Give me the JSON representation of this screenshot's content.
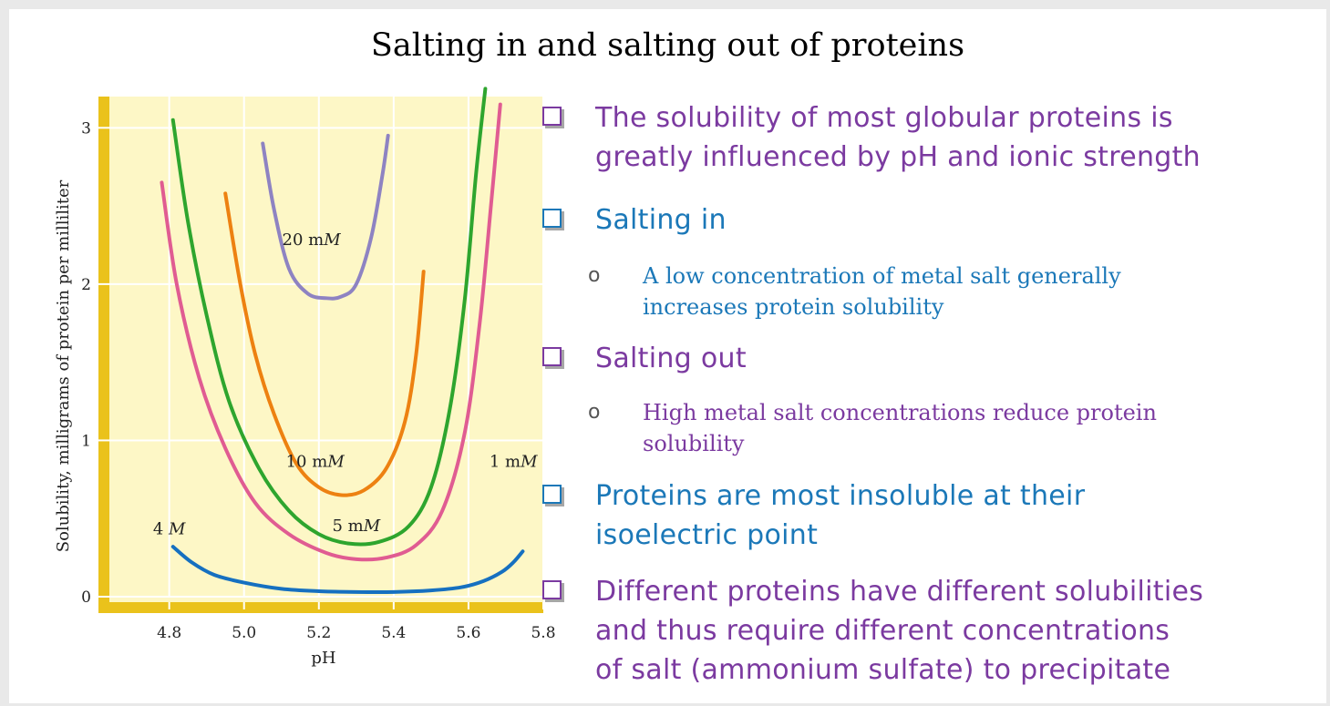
{
  "slide": {
    "title": "Salting in and salting out of proteins"
  },
  "colors": {
    "purple": "#7b3aa0",
    "blue": "#1b78b8",
    "panel": "#fdf7c6",
    "axis_bar": "#eac21b"
  },
  "bullets": [
    {
      "text": "The solubility of most globular proteins is greatly influenced by pH and ionic strength",
      "color": "#7b3aa0",
      "box": "#7b3aa0",
      "lines": [
        "The solubility of most globular proteins is",
        "greatly influenced by pH and ionic strength"
      ]
    },
    {
      "text": "Salting in",
      "color": "#1b78b8",
      "box": "#1b78b8",
      "lines": [
        "Salting in"
      ],
      "sub": {
        "marker": "o",
        "lines": [
          "A low concentration of metal salt generally",
          "increases protein solubility"
        ]
      }
    },
    {
      "text": "Salting out",
      "color": "#7b3aa0",
      "box": "#7b3aa0",
      "lines": [
        "Salting out"
      ],
      "sub": {
        "marker": "o",
        "lines": [
          "High metal salt concentrations reduce protein",
          "solubility"
        ]
      }
    },
    {
      "text": "Proteins are most insoluble at their isoelectric point",
      "color": "#1b78b8",
      "box": "#1b78b8",
      "lines": [
        "Proteins are most insoluble at their",
        "isoelectric point"
      ]
    },
    {
      "text": "Different proteins have different solubilities and thus require different concentrations of salt (ammonium sulfate) to precipitate",
      "color": "#7b3aa0",
      "box": "#7b3aa0",
      "lines": [
        "Different proteins have different solubilities",
        "and thus require different concentrations",
        "of salt (ammonium sulfate) to precipitate"
      ]
    }
  ],
  "chart_data": {
    "type": "line",
    "xlabel": "pH",
    "ylabel": "Solubility, milligrams of protein per milliliter",
    "xlim": [
      4.64,
      5.8
    ],
    "ylim": [
      0,
      3.2
    ],
    "xticks": [
      "4.8",
      "5.0",
      "5.2",
      "5.4",
      "5.6",
      "5.8"
    ],
    "yticks": [
      "0",
      "1",
      "2",
      "3"
    ],
    "grid": true,
    "series": [
      {
        "name": "20 mM",
        "color": "#8e83c2",
        "x": [
          5.05,
          5.08,
          5.12,
          5.17,
          5.22,
          5.26,
          5.3,
          5.34,
          5.37,
          5.385
        ],
        "y": [
          2.9,
          2.48,
          2.1,
          1.94,
          1.91,
          1.92,
          2.0,
          2.3,
          2.7,
          2.95
        ],
        "label_pos": [
          5.18,
          2.25
        ]
      },
      {
        "name": "10 mM",
        "color": "#ed8111",
        "x": [
          4.95,
          4.99,
          5.03,
          5.08,
          5.14,
          5.2,
          5.26,
          5.32,
          5.38,
          5.43,
          5.46,
          5.48
        ],
        "y": [
          2.58,
          2.0,
          1.55,
          1.17,
          0.85,
          0.7,
          0.65,
          0.68,
          0.82,
          1.12,
          1.55,
          2.08
        ],
        "label_pos": [
          5.19,
          0.83
        ]
      },
      {
        "name": "5 mM",
        "color": "#2ea52e",
        "x": [
          4.81,
          4.85,
          4.9,
          4.96,
          5.04,
          5.12,
          5.2,
          5.28,
          5.36,
          5.44,
          5.5,
          5.55,
          5.59,
          5.62,
          5.645
        ],
        "y": [
          3.05,
          2.4,
          1.8,
          1.25,
          0.82,
          0.55,
          0.4,
          0.34,
          0.35,
          0.45,
          0.7,
          1.2,
          1.9,
          2.7,
          3.25
        ],
        "label_pos": [
          5.3,
          0.42
        ]
      },
      {
        "name": "1 mM",
        "color": "#e05c92",
        "x": [
          4.78,
          4.82,
          4.88,
          4.95,
          5.03,
          5.12,
          5.22,
          5.3,
          5.38,
          5.46,
          5.53,
          5.59,
          5.63,
          5.66,
          5.685
        ],
        "y": [
          2.65,
          2.0,
          1.4,
          0.95,
          0.6,
          0.4,
          0.28,
          0.24,
          0.25,
          0.33,
          0.55,
          1.05,
          1.75,
          2.5,
          3.15
        ],
        "label_pos": [
          5.72,
          0.83
        ]
      },
      {
        "name": "4 M",
        "color": "#1670c0",
        "x": [
          4.81,
          4.86,
          4.92,
          5.0,
          5.1,
          5.2,
          5.3,
          5.4,
          5.5,
          5.58,
          5.64,
          5.69,
          5.72,
          5.745
        ],
        "y": [
          0.32,
          0.22,
          0.14,
          0.09,
          0.05,
          0.035,
          0.03,
          0.03,
          0.04,
          0.06,
          0.1,
          0.16,
          0.22,
          0.29
        ],
        "label_pos": [
          4.8,
          0.4
        ]
      }
    ]
  }
}
